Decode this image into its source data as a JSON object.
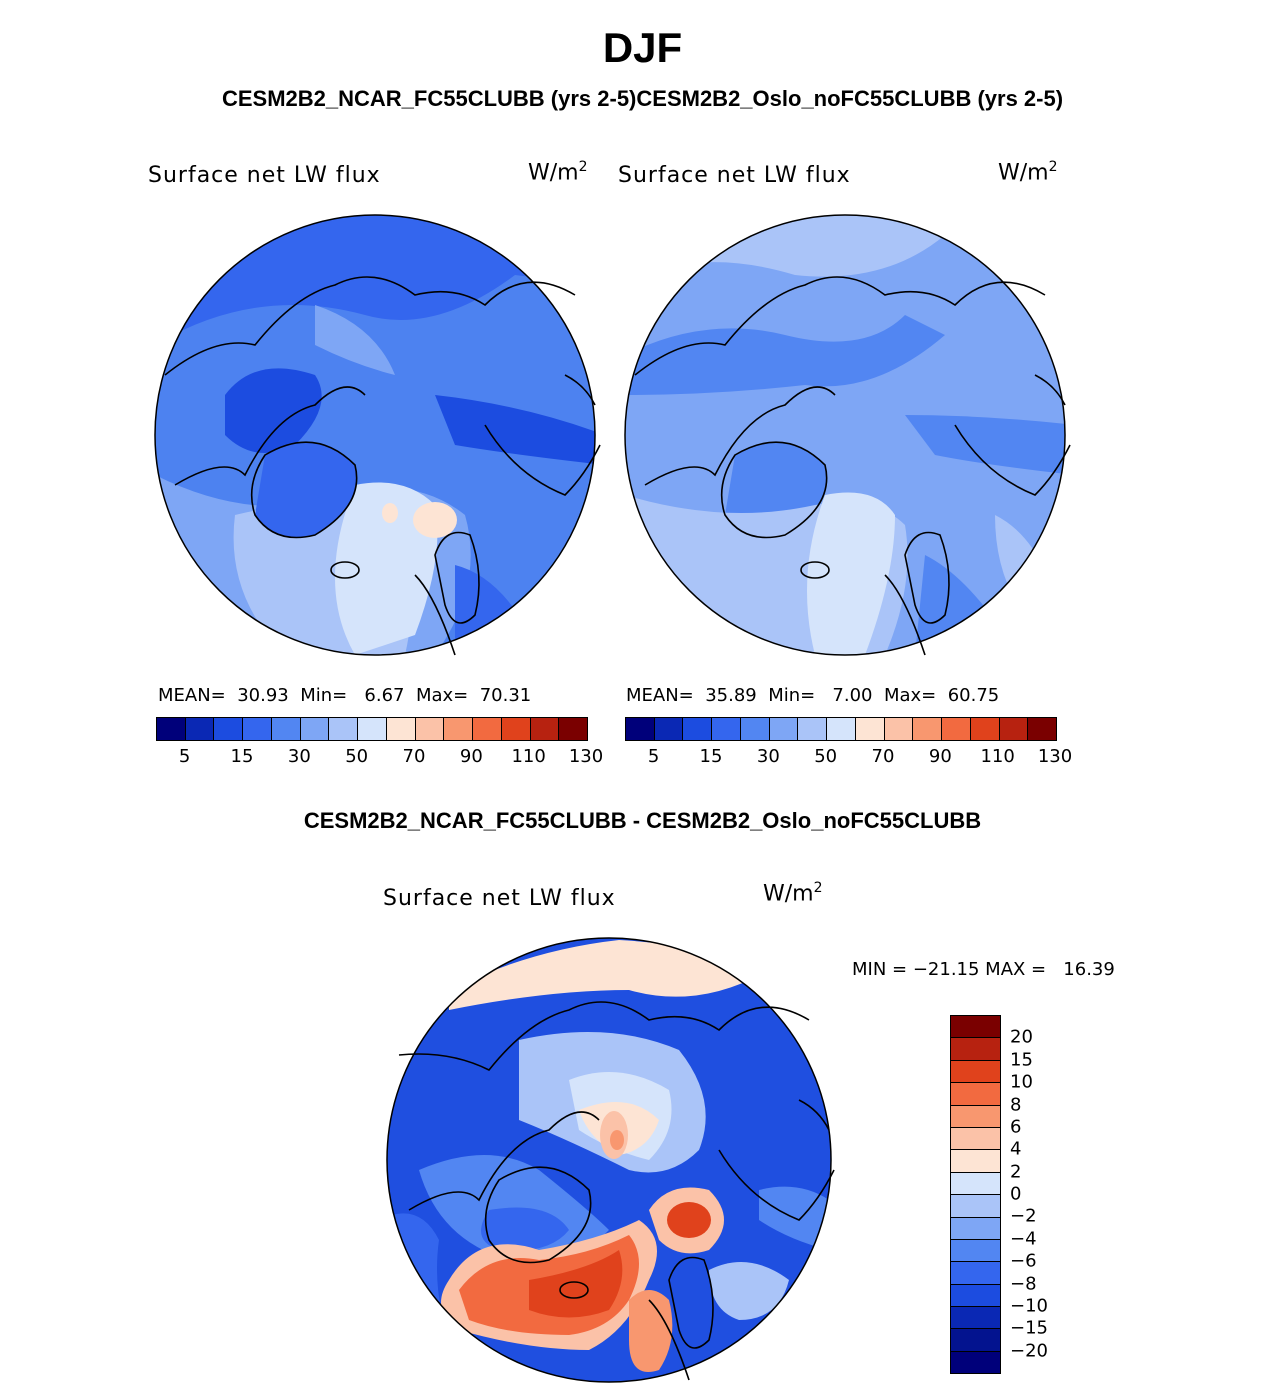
{
  "figure": {
    "title": "DJF",
    "models_title": "CESM2B2_NCAR_FC55CLUBB (yrs 2-5)CESM2B2_Oslo_noFC55CLUBB (yrs 2-5)",
    "diff_title": "CESM2B2_NCAR_FC55CLUBB - CESM2B2_Oslo_noFC55CLUBB"
  },
  "panels": [
    {
      "id": "ncar",
      "variable": "Surface net LW flux",
      "units_base": "W/m",
      "units_exp": "2",
      "mean_label": "MEAN=",
      "mean_value": "30.93",
      "min_label": "Min=",
      "min_value": "6.67",
      "max_label": "Max=",
      "max_value": "70.31",
      "dominant_fill": "#4d82f0"
    },
    {
      "id": "oslo",
      "variable": "Surface net LW flux",
      "units_base": "W/m",
      "units_exp": "2",
      "mean_label": "MEAN=",
      "mean_value": "35.89",
      "min_label": "Min=",
      "min_value": "7.00",
      "max_label": "Max=",
      "max_value": "60.75",
      "dominant_fill": "#7ea6f5"
    },
    {
      "id": "diff",
      "variable": "Surface net LW flux",
      "units_base": "W/m",
      "units_exp": "2",
      "minmax_text": "MIN = −21.15 MAX =   16.39",
      "dominant_fill": "#1f4fe0"
    }
  ],
  "colorbar_main": {
    "colors": [
      "#00007a",
      "#0a28b4",
      "#1c4ce0",
      "#3466ee",
      "#5286f2",
      "#7ea6f5",
      "#aac4f8",
      "#d5e4fb",
      "#fde4d4",
      "#fbc2a8",
      "#f8976f",
      "#f26a40",
      "#e0421c",
      "#b72210",
      "#7a0000"
    ],
    "labels": [
      "5",
      "15",
      "30",
      "50",
      "70",
      "90",
      "110",
      "130"
    ]
  },
  "colorbar_diff": {
    "colors": [
      "#7a0000",
      "#b72210",
      "#e0421c",
      "#f26a40",
      "#f8976f",
      "#fbc2a8",
      "#fde4d4",
      "#d5e4fb",
      "#aac4f8",
      "#7ea6f5",
      "#5286f2",
      "#3466ee",
      "#1c4ce0",
      "#0a28b4",
      "#03138f",
      "#00007a"
    ],
    "labels": [
      "20",
      "15",
      "10",
      "8",
      "6",
      "4",
      "2",
      "0",
      "−2",
      "−4",
      "−6",
      "−8",
      "−10",
      "−15",
      "−20"
    ]
  }
}
